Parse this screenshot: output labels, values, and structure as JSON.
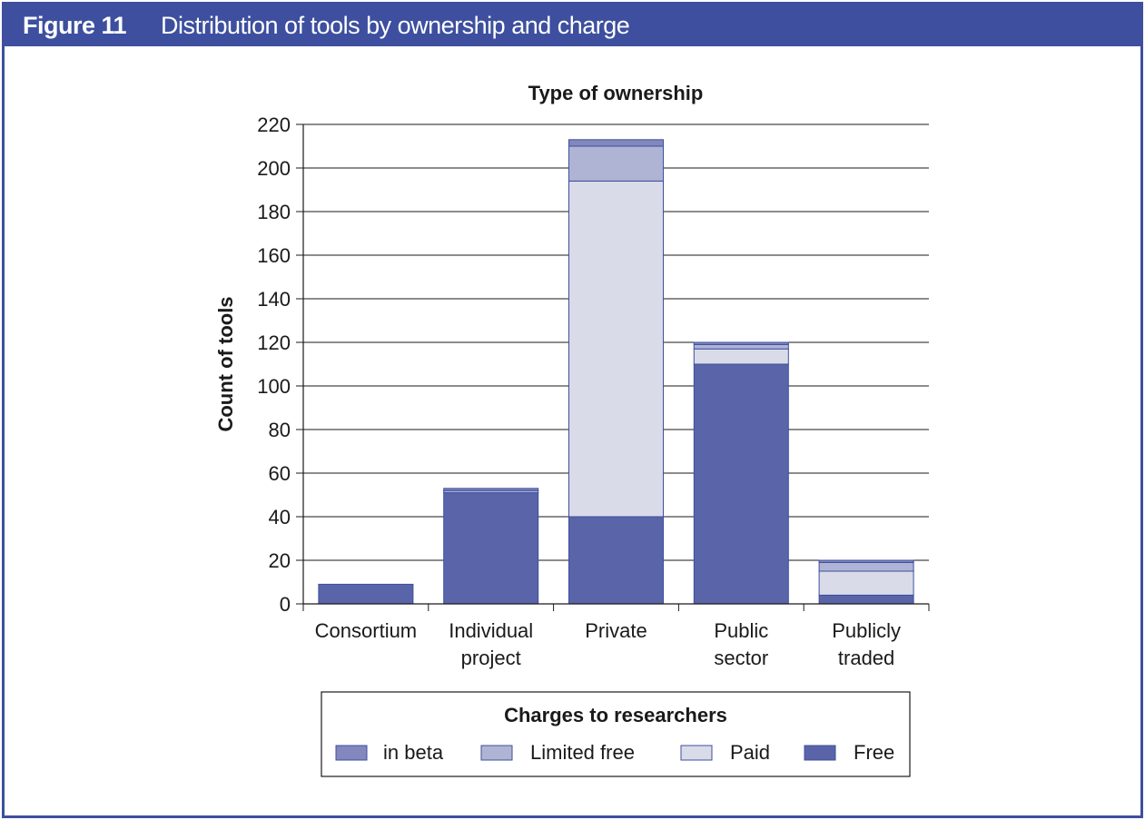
{
  "figure": {
    "number": "Figure 11",
    "title": "Distribution of tools by ownership and charge"
  },
  "chart_data": {
    "type": "bar",
    "stacked": true,
    "title": "Type of ownership",
    "xlabel": "",
    "ylabel": "Count of tools",
    "ylim": [
      0,
      220
    ],
    "yticks": [
      0,
      20,
      40,
      60,
      80,
      100,
      120,
      140,
      160,
      180,
      200,
      220
    ],
    "grid": true,
    "categories": [
      [
        "Consortium"
      ],
      [
        "Individual",
        "project"
      ],
      [
        "Private"
      ],
      [
        "Public",
        "sector"
      ],
      [
        "Publicly",
        "traded"
      ]
    ],
    "series": [
      {
        "name": "Free",
        "color": "#5a64a8",
        "values": [
          9,
          51,
          40,
          110,
          4
        ]
      },
      {
        "name": "Paid",
        "color": "#d9dbe9",
        "values": [
          0,
          0,
          154,
          7,
          11
        ]
      },
      {
        "name": "Limited free",
        "color": "#b0b4d4",
        "values": [
          0,
          1,
          16,
          2,
          4
        ]
      },
      {
        "name": "in beta",
        "color": "#8287bd",
        "values": [
          0,
          1,
          3,
          1,
          1
        ]
      }
    ],
    "legend": {
      "title": "Charges to researchers",
      "placement": "bottom",
      "order": [
        "in beta",
        "Limited free",
        "Paid",
        "Free"
      ]
    }
  }
}
